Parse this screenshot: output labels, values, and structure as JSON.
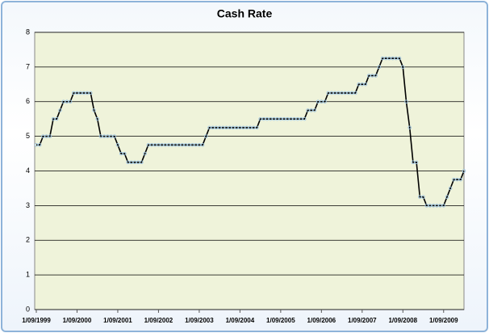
{
  "chart_data": {
    "type": "line",
    "title": "Cash Rate",
    "categories": [
      "1/09/1999",
      null,
      null,
      null,
      null,
      null,
      null,
      null,
      null,
      null,
      null,
      null,
      "1/09/2000",
      null,
      null,
      null,
      null,
      null,
      null,
      null,
      null,
      null,
      null,
      null,
      "1/09/2001",
      null,
      null,
      null,
      null,
      null,
      null,
      null,
      null,
      null,
      null,
      null,
      "1/09/2002",
      null,
      null,
      null,
      null,
      null,
      null,
      null,
      null,
      null,
      null,
      null,
      "1/09/2003",
      null,
      null,
      null,
      null,
      null,
      null,
      null,
      null,
      null,
      null,
      null,
      "1/09/2004",
      null,
      null,
      null,
      null,
      null,
      null,
      null,
      null,
      null,
      null,
      null,
      "1/09/2005",
      null,
      null,
      null,
      null,
      null,
      null,
      null,
      null,
      null,
      null,
      null,
      "1/09/2006",
      null,
      null,
      null,
      null,
      null,
      null,
      null,
      null,
      null,
      null,
      null,
      "1/09/2007",
      null,
      null,
      null,
      null,
      null,
      null,
      null,
      null,
      null,
      null,
      null,
      "1/09/2008",
      null,
      null,
      null,
      null,
      null,
      null,
      null,
      null,
      null,
      null,
      null,
      "1/09/2009",
      null,
      null,
      null,
      null,
      null,
      null
    ],
    "values": [
      4.75,
      4.75,
      5,
      5,
      5,
      5.5,
      5.5,
      5.75,
      6,
      6,
      6,
      6.25,
      6.25,
      6.25,
      6.25,
      6.25,
      6.25,
      5.75,
      5.5,
      5,
      5,
      5,
      5,
      5,
      4.75,
      4.5,
      4.5,
      4.25,
      4.25,
      4.25,
      4.25,
      4.25,
      4.5,
      4.75,
      4.75,
      4.75,
      4.75,
      4.75,
      4.75,
      4.75,
      4.75,
      4.75,
      4.75,
      4.75,
      4.75,
      4.75,
      4.75,
      4.75,
      4.75,
      4.75,
      5,
      5.25,
      5.25,
      5.25,
      5.25,
      5.25,
      5.25,
      5.25,
      5.25,
      5.25,
      5.25,
      5.25,
      5.25,
      5.25,
      5.25,
      5.25,
      5.5,
      5.5,
      5.5,
      5.5,
      5.5,
      5.5,
      5.5,
      5.5,
      5.5,
      5.5,
      5.5,
      5.5,
      5.5,
      5.5,
      5.75,
      5.75,
      5.75,
      6,
      6,
      6,
      6.25,
      6.25,
      6.25,
      6.25,
      6.25,
      6.25,
      6.25,
      6.25,
      6.25,
      6.5,
      6.5,
      6.5,
      6.75,
      6.75,
      6.75,
      7,
      7.25,
      7.25,
      7.25,
      7.25,
      7.25,
      7.25,
      7,
      6,
      5.25,
      4.25,
      4.25,
      3.25,
      3.25,
      3,
      3,
      3,
      3,
      3,
      3,
      3.25,
      3.5,
      3.75,
      3.75,
      3.75,
      4
    ],
    "color": "#000000",
    "marker_color": "#9cc3e0",
    "ylim": [
      0,
      8
    ],
    "yticks": [
      0,
      1,
      2,
      3,
      4,
      5,
      6,
      7,
      8
    ],
    "grid": true
  }
}
